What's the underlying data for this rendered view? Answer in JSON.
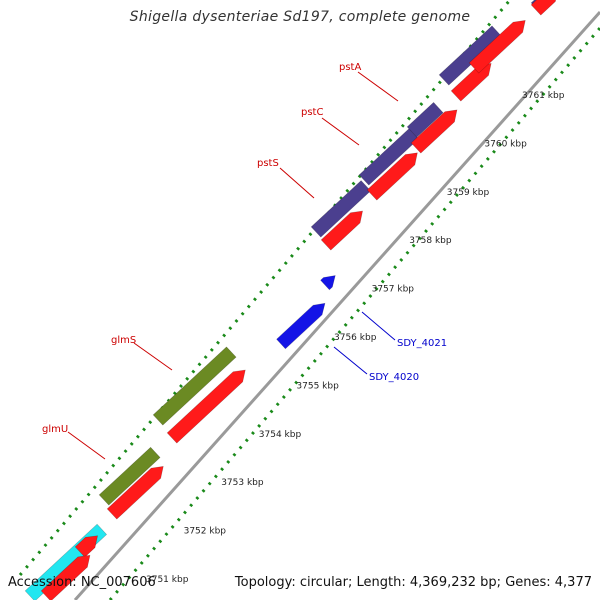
{
  "title": "Shigella dysenteriae Sd197, complete genome",
  "footer": {
    "accession": "Accession: NC_007606",
    "topology": "Topology: circular;",
    "length": "Length: 4,369,232 bp;",
    "genes": "Genes: 4,377"
  },
  "colors": {
    "background": "#ffffff",
    "backbone": "#9a9a9a",
    "forward_track": "#4b3f8f",
    "reverse_track": "#ff1a1a",
    "olive_gene": "#6b8a23",
    "cyan_gene": "#22e6f0",
    "blue_gene": "#1414e6",
    "tick": "#1a8a1a",
    "label_red": "#cc0000",
    "label_blue": "#0000cc"
  },
  "scale_kbp": [
    3751,
    3752,
    3753,
    3754,
    3755,
    3756,
    3757,
    3758,
    3759,
    3760,
    3761
  ],
  "scale_unit": "kbp",
  "genes": [
    {
      "name": "pstA"
    },
    {
      "name": "pstC"
    },
    {
      "name": "pstS"
    },
    {
      "name": "glmS"
    },
    {
      "name": "glmU"
    },
    {
      "name": "SDY_4021"
    },
    {
      "name": "SDY_4020"
    }
  ]
}
